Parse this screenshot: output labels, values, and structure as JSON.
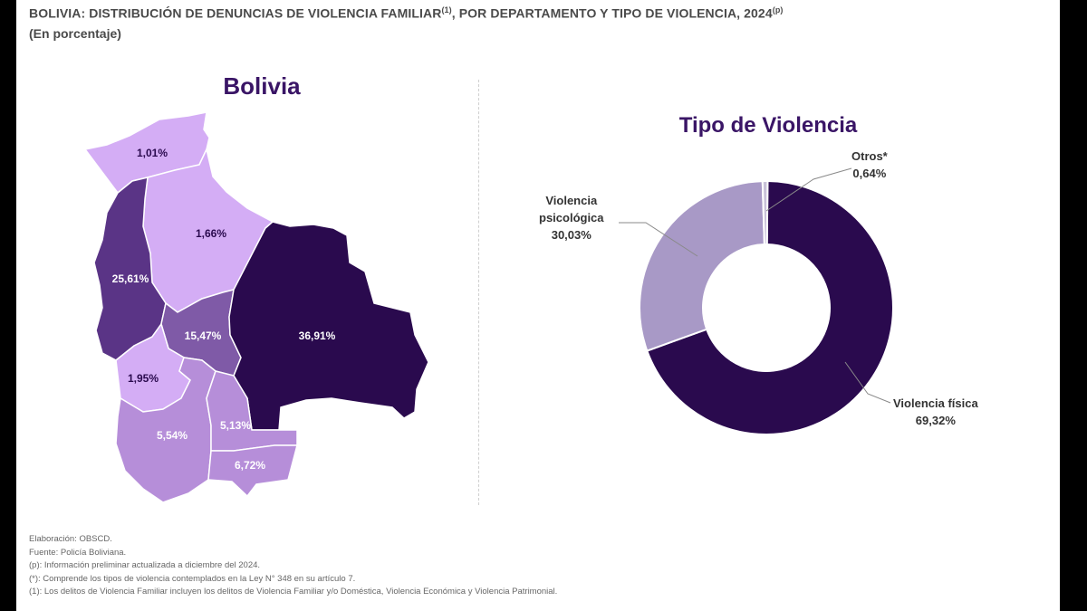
{
  "header": {
    "title": "BOLIVIA: DISTRIBUCIÓN DE DENUNCIAS DE VIOLENCIA FAMILIAR",
    "title_sup": "(1)",
    "title_rest": ", POR DEPARTAMENTO Y TIPO DE VIOLENCIA, 2024",
    "title_sup2": "(p)",
    "subtitle": "(En porcentaje)"
  },
  "colors": {
    "darkest": "#2a0a4e",
    "dark": "#5a3486",
    "medium": "#7f5aa7",
    "light_medium": "#b68ed9",
    "light": "#d4adf5",
    "donut_light": "#a899c6"
  },
  "chart_data": [
    {
      "type": "choropleth_map",
      "title": "Bolivia",
      "regions": [
        {
          "label": "1,01%",
          "value": 1.01
        },
        {
          "label": "1,66%",
          "value": 1.66
        },
        {
          "label": "25,61%",
          "value": 25.61
        },
        {
          "label": "15,47%",
          "value": 15.47
        },
        {
          "label": "36,91%",
          "value": 36.91
        },
        {
          "label": "1,95%",
          "value": 1.95
        },
        {
          "label": "5,54%",
          "value": 5.54
        },
        {
          "label": "5,13%",
          "value": 5.13
        },
        {
          "label": "6,72%",
          "value": 6.72
        }
      ]
    },
    {
      "type": "pie",
      "donut": true,
      "title": "Tipo de Violencia",
      "slices": [
        {
          "name_lines": [
            "Violencia física"
          ],
          "label": "69,32%",
          "value": 69.32,
          "color": "#2a0a4e"
        },
        {
          "name_lines": [
            "Violencia",
            "psicológica"
          ],
          "label": "30,03%",
          "value": 30.03,
          "color": "#a899c6"
        },
        {
          "name_lines": [
            "Otros*"
          ],
          "label": "0,64%",
          "value": 0.64,
          "color": "#c9c2d9"
        }
      ]
    }
  ],
  "notes": [
    "Elaboración: OBSCD.",
    "Fuente: Policía Boliviana.",
    "(p): Información preliminar actualizada a diciembre del 2024.",
    "(*): Comprende los tipos de violencia contemplados en la Ley N° 348 en su artículo 7.",
    "(1): Los delitos de Violencia Familiar incluyen los delitos de Violencia Familiar y/o Doméstica, Violencia Económica y Violencia Patrimonial."
  ]
}
